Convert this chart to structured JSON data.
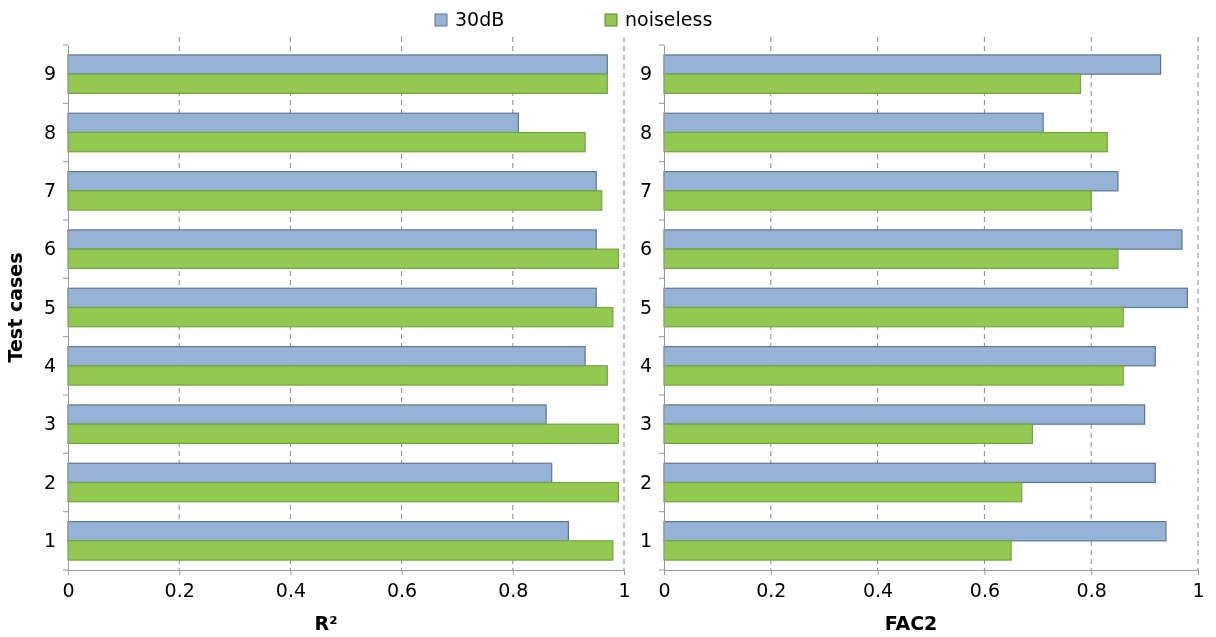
{
  "chart_data": [
    {
      "type": "bar",
      "orientation": "horizontal",
      "xlabel": "R²",
      "ylabel": "Test cases",
      "categories": [
        "9",
        "8",
        "7",
        "6",
        "5",
        "4",
        "3",
        "2",
        "1"
      ],
      "xlim": [
        0,
        1
      ],
      "xticks": [
        0,
        0.2,
        0.4,
        0.6,
        0.8,
        1
      ],
      "grid": "x",
      "legend": "top",
      "series": [
        {
          "name": "30dB",
          "color": "#95b3d7",
          "values": [
            0.97,
            0.81,
            0.95,
            0.95,
            0.95,
            0.93,
            0.86,
            0.87,
            0.9
          ]
        },
        {
          "name": "noiseless",
          "color": "#92c950",
          "values": [
            0.97,
            0.93,
            0.96,
            0.99,
            0.98,
            0.97,
            0.99,
            0.99,
            0.98
          ]
        }
      ]
    },
    {
      "type": "bar",
      "orientation": "horizontal",
      "xlabel": "FAC2",
      "categories": [
        "9",
        "8",
        "7",
        "6",
        "5",
        "4",
        "3",
        "2",
        "1"
      ],
      "xlim": [
        0,
        1
      ],
      "xticks": [
        0,
        0.2,
        0.4,
        0.6,
        0.8,
        1
      ],
      "grid": "x",
      "legend": false,
      "series": [
        {
          "color": "#95b3d7",
          "values": [
            0.93,
            0.71,
            0.85,
            0.97,
            0.98,
            0.92,
            0.9,
            0.92,
            0.94
          ]
        },
        {
          "color": "#92c950",
          "values": [
            0.78,
            0.83,
            0.8,
            0.85,
            0.86,
            0.86,
            0.69,
            0.67,
            0.65
          ]
        }
      ]
    }
  ]
}
